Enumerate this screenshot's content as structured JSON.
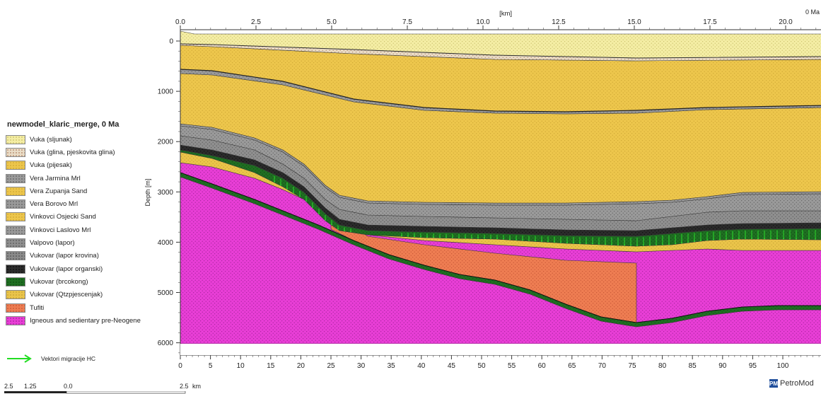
{
  "legend": {
    "title": "newmodel_klaric_merge, 0 Ma",
    "items": [
      {
        "label": "Vuka (sljunak)",
        "fill": "#f4eda4",
        "dot": "#b8ad56"
      },
      {
        "label": "Vuka (glina, pjeskovita glina)",
        "fill": "#e9dcc6",
        "dot": "#9b5d3c"
      },
      {
        "label": "Vuka (pijesak)",
        "fill": "#edc64c",
        "dot": "#c29a2a"
      },
      {
        "label": "Vera Jarmina Mrl",
        "fill": "#9a9a9a",
        "dot": "#4c4c4c"
      },
      {
        "label": "Vera Zupanja Sand",
        "fill": "#edc64c",
        "dot": "#c29a2a"
      },
      {
        "label": "Vera Borovo Mrl",
        "fill": "#9a9a9a",
        "dot": "#4c4c4c"
      },
      {
        "label": "Vinkovci Osjecki Sand",
        "fill": "#edc64c",
        "dot": "#c29a2a"
      },
      {
        "label": "Vinkovci Laslovo Mrl",
        "fill": "#9a9a9a",
        "dot": "#4c4c4c"
      },
      {
        "label": "Valpovo (lapor)",
        "fill": "#8f8f8f",
        "dot": "#444444"
      },
      {
        "label": "Vukovar (lapor krovina)",
        "fill": "#8a8a8a",
        "dot": "#3a3a3a"
      },
      {
        "label": "Vukovar (lapor organski)",
        "fill": "#2b2b2b",
        "dot": "#000000"
      },
      {
        "label": "Vukovar (brcokong)",
        "fill": "#1f6e22",
        "dot": "#0b3d0c"
      },
      {
        "label": "Vukovar (Qtzpjescenjak)",
        "fill": "#eac44a",
        "dot": "#b8952a"
      },
      {
        "label": "Tufiti",
        "fill": "#ee7d52",
        "dot": "#b7472a"
      },
      {
        "label": "Igneous and sedientary pre-Neogene",
        "fill": "#e83ed6",
        "dot": "#8c1a86"
      }
    ],
    "vector_label": "Vektori migracije HC",
    "vector_color": "#22dd22"
  },
  "section": {
    "top_axis_unit": "[km]",
    "top_ticks": [
      "0.0",
      "2.5",
      "5.0",
      "7.5",
      "10.0",
      "12.5",
      "15.0",
      "17.5",
      "20.0"
    ],
    "time_label": "0 Ma",
    "depth_title": "Depth [m]",
    "depth_ticks": [
      "0",
      "1000",
      "2000",
      "3000",
      "4000",
      "5000",
      "6000"
    ],
    "bottom_ticks": [
      "0",
      "5",
      "10",
      "15",
      "20",
      "25",
      "30",
      "35",
      "40",
      "45",
      "50",
      "55",
      "60",
      "65",
      "70",
      "75",
      "80",
      "85",
      "90",
      "95",
      "100"
    ]
  },
  "scale": {
    "labels": [
      "2.5",
      "1.25",
      "0.0",
      "2.5",
      "km"
    ]
  },
  "brand": {
    "icon": "PM",
    "name": "PetroMod"
  }
}
